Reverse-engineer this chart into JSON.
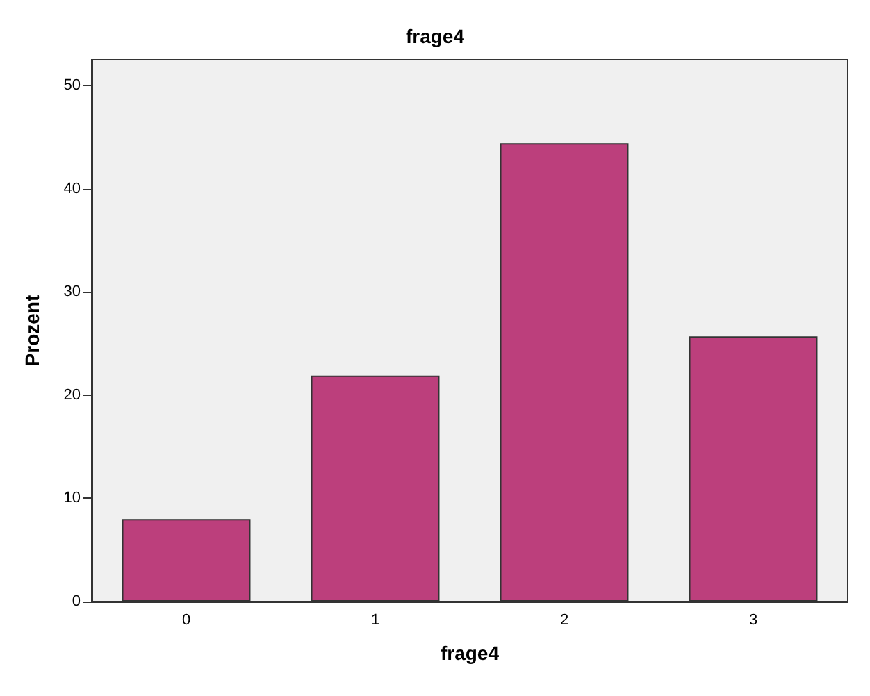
{
  "chart_data": {
    "type": "bar",
    "title": "frage4",
    "xlabel": "frage4",
    "ylabel": "Prozent",
    "categories": [
      "0",
      "1",
      "2",
      "3"
    ],
    "values": [
      8.0,
      21.9,
      44.4,
      25.7
    ],
    "color": "#bc3f7c",
    "ylim": [
      0,
      52.5
    ],
    "yticks": [
      0,
      10,
      20,
      30,
      40,
      50
    ],
    "grid": false
  }
}
